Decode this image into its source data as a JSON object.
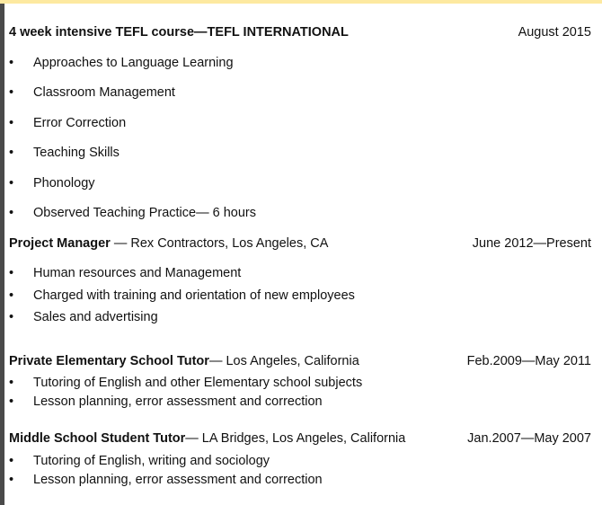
{
  "colors": {
    "top_strip": "#fde9a0",
    "left_bar": "#4a4a4a"
  },
  "bullet_glyph": "•",
  "sections": [
    {
      "title": "4 week intensive TEFL course—TEFL INTERNATIONAL",
      "subtitle": "",
      "date": "August 2015",
      "items": [
        "Approaches to Language Learning",
        "Classroom Management",
        "Error Correction",
        "Teaching Skills",
        "Phonology",
        "Observed Teaching Practice— 6 hours"
      ]
    },
    {
      "title": "Project Manager",
      "subtitle": " — Rex Contractors, Los Angeles, CA",
      "date": "June 2012—Present",
      "items": [
        "Human resources and Management",
        "Charged with training and orientation of new employees",
        "Sales and advertising"
      ]
    },
    {
      "title": "Private Elementary School Tutor",
      "subtitle": "— Los Angeles, California",
      "date": "Feb.2009—May 2011",
      "items": [
        "Tutoring of English and other Elementary school subjects",
        "Lesson planning, error assessment and correction"
      ]
    },
    {
      "title": "Middle School Student Tutor",
      "subtitle": "— LA Bridges, Los Angeles, California",
      "date": "Jan.2007—May 2007",
      "items": [
        "Tutoring of English, writing and sociology",
        "Lesson planning, error assessment and correction"
      ]
    }
  ]
}
